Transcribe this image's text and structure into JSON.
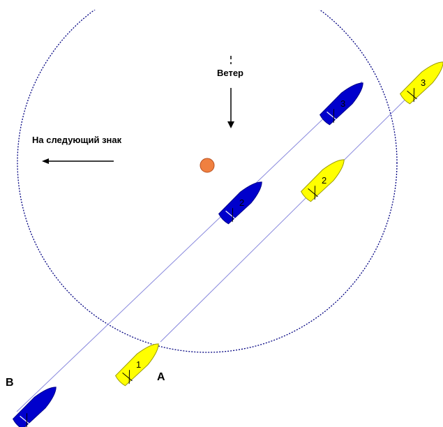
{
  "wind_label": "Ветер",
  "next_mark_label": "На следующий знак",
  "boat_label_a": "A",
  "boat_label_b": "B",
  "boats": {
    "yellow": {
      "color": "#ffff00",
      "positions": [
        "1",
        "2",
        "3"
      ]
    },
    "blue": {
      "color": "#0000cc",
      "positions": [
        "",
        "2",
        "3"
      ]
    }
  },
  "mark_color": "#f08040",
  "zone_color": "#000080",
  "track_color": "#8888dd"
}
